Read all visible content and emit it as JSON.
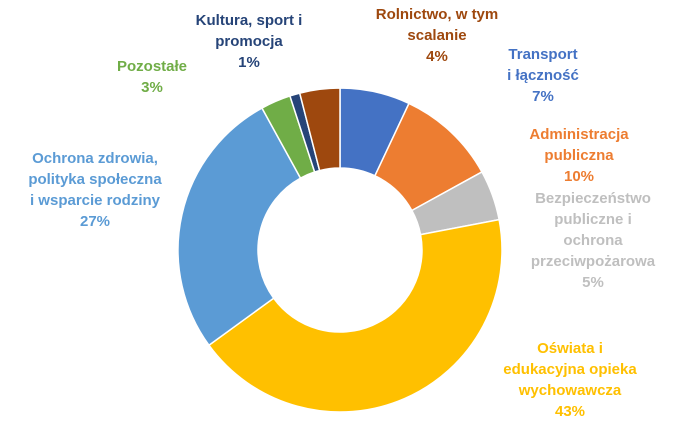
{
  "chart_data": {
    "type": "pie",
    "subtype": "donut",
    "title": "",
    "categories": [
      "Transport i łączność",
      "Administracja publiczna",
      "Bezpieczeństwo publiczne i ochrona przeciwpożarowa",
      "Oświata i edukacyjna opieka wychowawcza",
      "Ochrona zdrowia, polityka społeczna i wsparcie rodziny",
      "Pozostałe",
      "Kultura, sport i promocja",
      "Rolnictwo, w tym scalanie"
    ],
    "values": [
      7,
      10,
      5,
      43,
      27,
      3,
      1,
      4
    ],
    "value_labels": [
      "7%",
      "10%",
      "5%",
      "43%",
      "27%",
      "3%",
      "1%",
      "4%"
    ],
    "colors": [
      "#4472C4",
      "#ED7D31",
      "#BFBFBF",
      "#FFC000",
      "#5B9BD5",
      "#70AD47",
      "#264478",
      "#9E480E"
    ],
    "label_colors": [
      "#4472C4",
      "#ED7D31",
      "#BFBFBF",
      "#FFC000",
      "#5B9BD5",
      "#70AD47",
      "#264478",
      "#9E480E"
    ],
    "legend": "none"
  },
  "labels": {
    "transport": [
      "Transport",
      "i łączność"
    ],
    "administracja": [
      "Administracja",
      "publiczna"
    ],
    "bezpieczenstwo": [
      "Bezpieczeństwo",
      "publiczne i",
      "ochrona",
      "przeciwpożarowa"
    ],
    "oswiata": [
      "Oświata i",
      "edukacyjna opieka",
      "wychowawcza"
    ],
    "ochrona": [
      "Ochrona zdrowia,",
      "polityka społeczna",
      "i wsparcie rodziny"
    ],
    "pozostale": [
      "Pozostałe"
    ],
    "kultura": [
      "Kultura, sport i",
      "promocja"
    ],
    "rolnictwo": [
      "Rolnictwo, w tym",
      "scalanie"
    ]
  }
}
